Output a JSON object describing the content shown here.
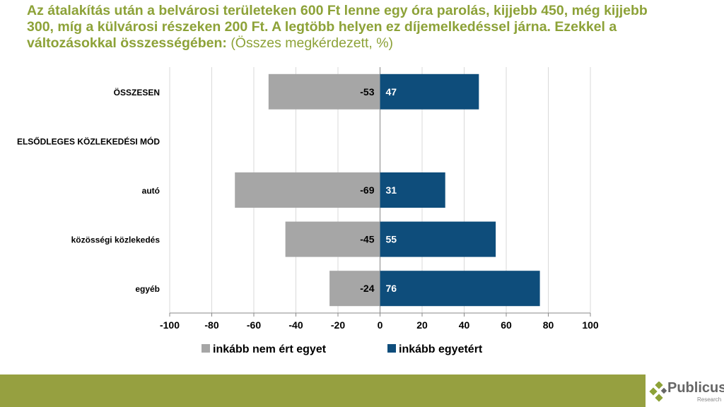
{
  "title": {
    "main": "Az átalakítás után a belvárosi területeken 600 Ft lenne egy óra parolás, kijjebb 450, még kijjebb 300, míg a külvárosi részeken 200 Ft. A legtöbb helyen ez díjemelkedéssel járna. Ezekkel a változásokkal összességében:",
    "sub": "(Összes megkérdezett, %)"
  },
  "chart_data": {
    "type": "bar",
    "orientation": "horizontal-diverging",
    "categories": [
      "ÖSSZESEN",
      "ELSŐDLEGES KÖZLEKEDÉSI MÓD",
      "autó",
      "közösségi közlekedés",
      "egyéb"
    ],
    "series": [
      {
        "name": "inkább nem ért egyet",
        "color": "#a6a6a6",
        "values": [
          -53,
          null,
          -69,
          -45,
          -24
        ]
      },
      {
        "name": "inkább egyetért",
        "color": "#0e4d7b",
        "values": [
          47,
          null,
          31,
          55,
          76
        ]
      }
    ],
    "xlim": [
      -100,
      100
    ],
    "xticks": [
      -100,
      -80,
      -60,
      -40,
      -20,
      0,
      20,
      40,
      60,
      80,
      100
    ],
    "grid": true,
    "legend": "bottom"
  },
  "footer": {
    "logo": "Publicus",
    "logo_sub": "Research"
  }
}
